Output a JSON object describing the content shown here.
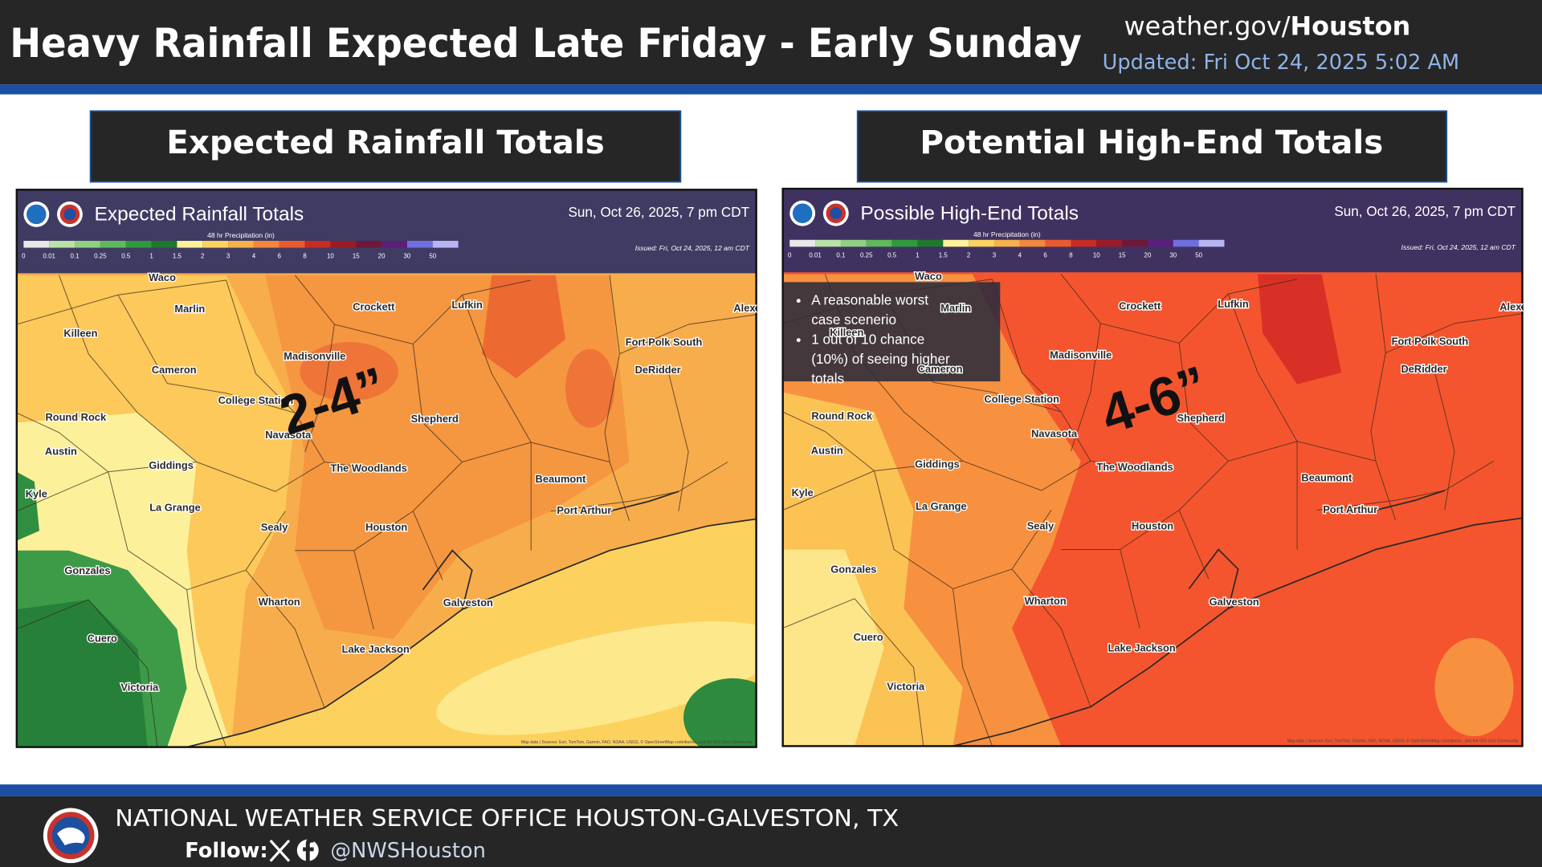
{
  "header": {
    "title": "Heavy Rainfall Expected Late Friday - Early Sunday",
    "site_prefix": "weather.gov/",
    "site_name": "Houston",
    "updated": "Updated: Fri Oct 24, 2025 5:02 AM"
  },
  "panels": [
    {
      "title": "Expected Rainfall Totals",
      "map_title": "Expected Rainfall Totals",
      "valid": "Sun, Oct 26, 2025, 7 pm CDT",
      "issued": "Issued: Fri, Oct 24, 2025, 12 am CDT",
      "range": "2-4”"
    },
    {
      "title": "Potential High-End Totals",
      "map_title": "Possible High-End Totals",
      "valid": "Sun, Oct 26, 2025, 7 pm CDT",
      "issued": "Issued: Fri, Oct 24, 2025, 12 am CDT",
      "range": "4-6”",
      "notes": [
        "A reasonable worst case scenerio",
        "1 out of 10 chance (10%) of seeing higher totals"
      ]
    }
  ],
  "legend": {
    "title": "48 hr Precipitation (in)",
    "ticks": [
      0,
      0.01,
      0.1,
      0.25,
      0.5,
      1,
      1.5,
      2,
      3,
      4,
      6,
      8,
      10,
      15,
      20,
      30,
      50
    ],
    "colors": [
      "#e8e8e8",
      "#b9e3a6",
      "#8fd081",
      "#5fb85a",
      "#2f9a3d",
      "#1d7a2c",
      "#fdf29a",
      "#fcd35e",
      "#f8b04c",
      "#f3873c",
      "#ea5a2e",
      "#c92a22",
      "#9c1a27",
      "#6d1838",
      "#5a1f7a",
      "#6f6fe0",
      "#b8b4f4"
    ]
  },
  "cities": [
    "Waco",
    "Marlin",
    "Killeen",
    "Cameron",
    "Crockett",
    "Lufkin",
    "Madisonville",
    "College Station",
    "Navasota",
    "Shepherd",
    "Round Rock",
    "Austin",
    "Giddings",
    "The Woodlands",
    "Beaumont",
    "Port Arthur",
    "La Grange",
    "Sealy",
    "Houston",
    "Kyle",
    "Gonzales",
    "Wharton",
    "Galveston",
    "Cuero",
    "Lake Jackson",
    "Victoria",
    "Fort Polk South",
    "DeRidder",
    "Alex"
  ],
  "attribution": "Map data | Sources: Esri, TomTom, Garmin, FAO, NOAA, USGS, © OpenStreetMap contributors, and the GIS User Community",
  "footer": {
    "office": "NATIONAL WEATHER SERVICE OFFICE HOUSTON-GALVESTON, TX",
    "follow": "Follow:",
    "handle": "@NWSHouston"
  }
}
